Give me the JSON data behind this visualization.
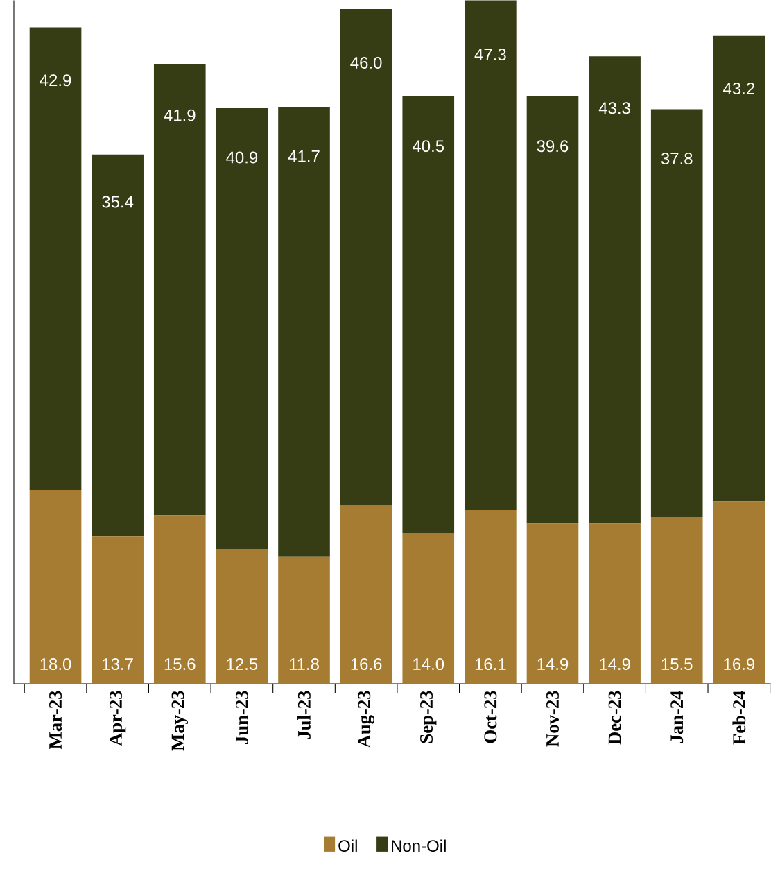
{
  "chart_data": {
    "type": "bar",
    "stacked": true,
    "legend": "bottom",
    "categories": [
      "Mar-23",
      "Apr-23",
      "May-23",
      "Jun-23",
      "Jul-23",
      "Aug-23",
      "Sep-23",
      "Oct-23",
      "Nov-23",
      "Dec-23",
      "Jan-24",
      "Feb-24"
    ],
    "series": [
      {
        "name": "Oil",
        "color": "#a57c32",
        "values": [
          18.0,
          13.7,
          15.6,
          12.5,
          11.8,
          16.6,
          14.0,
          16.1,
          14.9,
          14.9,
          15.5,
          16.9
        ],
        "value_labels": [
          "18.0",
          "13.7",
          "15.6",
          "12.5",
          "11.8",
          "16.6",
          "14.0",
          "16.1",
          "14.9",
          "14.9",
          "15.5",
          "16.9"
        ]
      },
      {
        "name": "Non-Oil",
        "color": "#363d14",
        "values": [
          42.9,
          35.4,
          41.9,
          40.9,
          41.7,
          46.0,
          40.5,
          47.3,
          39.6,
          43.3,
          37.8,
          43.2
        ],
        "value_labels": [
          "42.9",
          "35.4",
          "41.9",
          "40.9",
          "41.7",
          "46.0",
          "40.5",
          "47.3",
          "39.6",
          "43.3",
          "37.8",
          "43.2"
        ]
      }
    ]
  }
}
